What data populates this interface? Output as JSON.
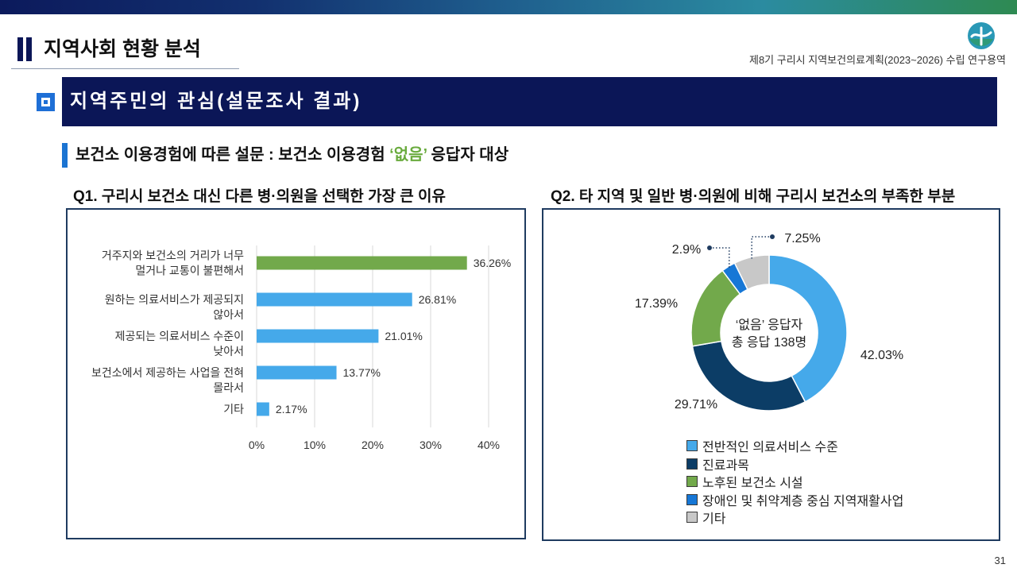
{
  "colors": {
    "top_gradient": [
      "#0c1a5c",
      "#12306f",
      "#1f5f8e",
      "#2b8ba0",
      "#2e8a52"
    ],
    "navy": "#0b1657",
    "accent_blue": "#1b74d2",
    "highlight_green": "#6aab3e",
    "panel_border": "#1f3b60"
  },
  "header": {
    "title": "지역사회 현황 분석",
    "report_name": "제8기 구리시 지역보건의료계획(2023~2026) 수립 연구용역",
    "logo": "city-emblem-icon"
  },
  "section": {
    "icon": "square-bullet-icon",
    "banner_title": "지역주민의 관심(설문조사 결과)",
    "subtitle": {
      "prefix": "보건소 이용경험에 따른 설문 : 보건소 이용경험 ",
      "highlight": "‘없음’",
      "suffix": " 응답자 대상"
    }
  },
  "chart_data": [
    {
      "type": "bar",
      "orientation": "horizontal",
      "title": "Q1. 구리시 보건소 대신 다른 병·의원을 선택한 가장 큰 이유",
      "categories": [
        "거주지와 보건소의 거리가 너무\n멀거나 교통이 불편해서",
        "원하는 의료서비스가 제공되지\n않아서",
        "제공되는 의료서비스 수준이\n낮아서",
        "보건소에서 제공하는 사업을 전혀\n몰라서",
        "기타"
      ],
      "values": [
        36.26,
        26.81,
        21.01,
        13.77,
        2.17
      ],
      "data_labels": [
        "36.26%",
        "26.81%",
        "21.01%",
        "13.77%",
        "2.17%"
      ],
      "bar_colors": [
        "#72a94b",
        "#45a9ea",
        "#45a9ea",
        "#45a9ea",
        "#45a9ea"
      ],
      "xlim": [
        0,
        40
      ],
      "xticks": [
        0,
        10,
        20,
        30,
        40
      ],
      "xtick_labels": [
        "0%",
        "10%",
        "20%",
        "30%",
        "40%"
      ],
      "grid": true,
      "legend": "none"
    },
    {
      "type": "pie",
      "variant": "donut",
      "title": "Q2. 타 지역 및 일반 병·의원에 비해 구리시 보건소의 부족한 부분",
      "categories": [
        "전반적인 의료서비스 수준",
        "진료과목",
        "노후된 보건소 시설",
        "장애인 및 취약계층 중심 지역재활사업",
        "기타"
      ],
      "values": [
        42.03,
        29.71,
        17.39,
        2.9,
        7.25
      ],
      "data_labels": [
        "42.03%",
        "29.71%",
        "17.39%",
        "2.9%",
        "7.25%"
      ],
      "colors": [
        "#45a9ea",
        "#0c3d66",
        "#72a94b",
        "#1677d6",
        "#c8c8c8"
      ],
      "center_text": [
        "‘없음’ 응답자",
        "총 응답 138명"
      ],
      "legend": "bottom"
    }
  ],
  "page_number": "31"
}
